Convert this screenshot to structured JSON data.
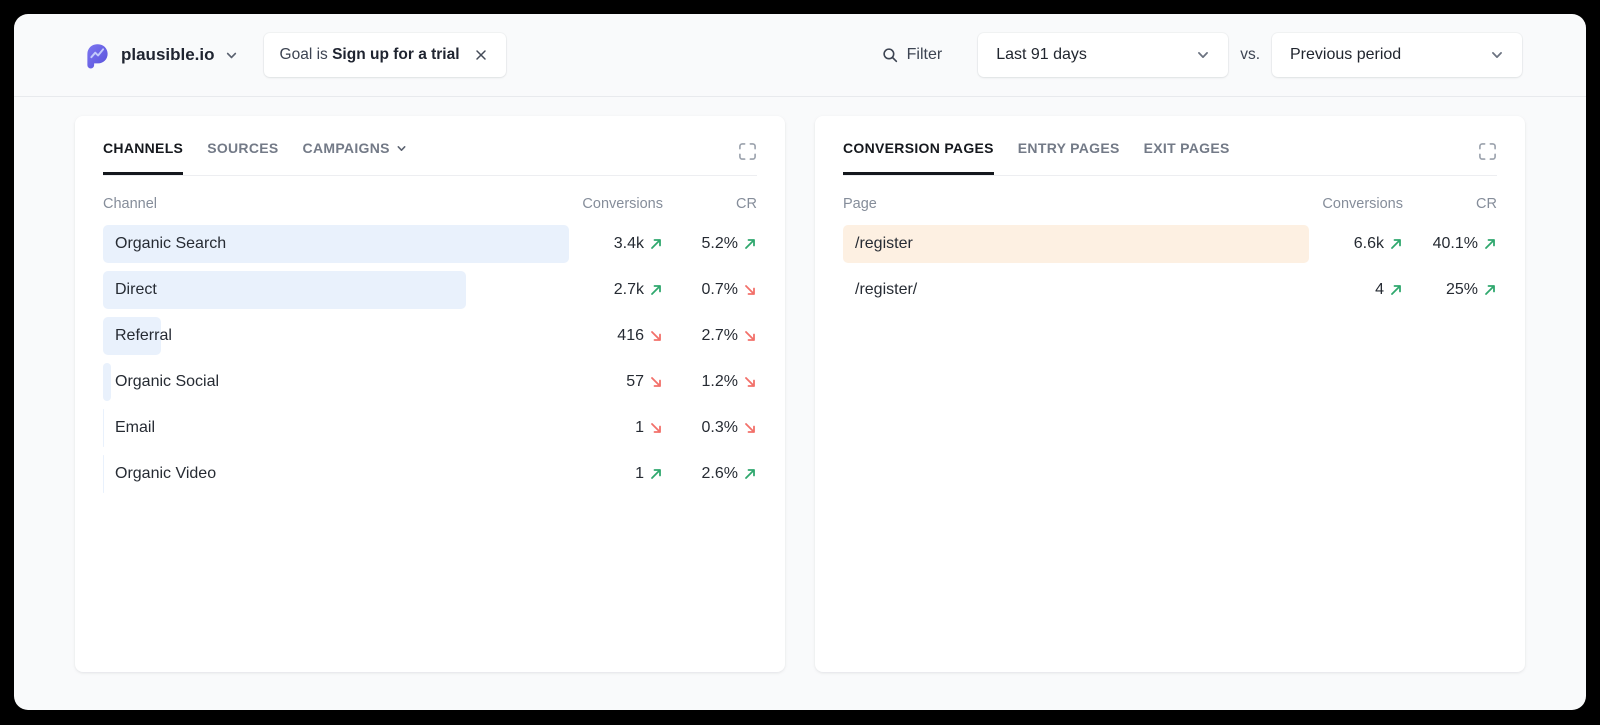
{
  "colors": {
    "positive": "#2fa86e",
    "negative": "#f2706a",
    "channels_bar": "#e9f1fc",
    "pages_bar": "#fdf0e2",
    "brand_purple": "#6f68e9"
  },
  "header": {
    "site_name": "plausible.io",
    "goal_filter": {
      "prefix": "Goal is",
      "value": "Sign up for a trial"
    },
    "filter_button": "Filter",
    "date_range": "Last 91 days",
    "comparison_label": "vs.",
    "comparison_value": "Previous period"
  },
  "panels": [
    {
      "name": "channels",
      "tabs": [
        {
          "label": "CHANNELS",
          "active": true
        },
        {
          "label": "SOURCES",
          "active": false
        },
        {
          "label": "CAMPAIGNS",
          "active": false,
          "dropdown": true
        }
      ],
      "columns": {
        "name": "Channel",
        "conversions": "Conversions",
        "cr": "CR"
      },
      "bar_color": "#e9f1fc",
      "rows": [
        {
          "name": "Organic Search",
          "conversions": "3.4k",
          "conversions_trend": "up",
          "cr": "5.2%",
          "cr_trend": "up",
          "bar_pct": 100
        },
        {
          "name": "Direct",
          "conversions": "2.7k",
          "conversions_trend": "up",
          "cr": "0.7%",
          "cr_trend": "down",
          "bar_pct": 78
        },
        {
          "name": "Referral",
          "conversions": "416",
          "conversions_trend": "down",
          "cr": "2.7%",
          "cr_trend": "down",
          "bar_pct": 12.5
        },
        {
          "name": "Organic Social",
          "conversions": "57",
          "conversions_trend": "down",
          "cr": "1.2%",
          "cr_trend": "down",
          "bar_pct": 1.7
        },
        {
          "name": "Email",
          "conversions": "1",
          "conversions_trend": "down",
          "cr": "0.3%",
          "cr_trend": "down",
          "bar_pct": 0.25
        },
        {
          "name": "Organic Video",
          "conversions": "1",
          "conversions_trend": "up",
          "cr": "2.6%",
          "cr_trend": "up",
          "bar_pct": 0.25
        }
      ]
    },
    {
      "name": "pages",
      "tabs": [
        {
          "label": "CONVERSION PAGES",
          "active": true
        },
        {
          "label": "ENTRY PAGES",
          "active": false
        },
        {
          "label": "EXIT PAGES",
          "active": false
        }
      ],
      "columns": {
        "name": "Page",
        "conversions": "Conversions",
        "cr": "CR"
      },
      "bar_color": "#fdf0e2",
      "rows": [
        {
          "name": "/register",
          "conversions": "6.6k",
          "conversions_trend": "up",
          "cr": "40.1%",
          "cr_trend": "up",
          "bar_pct": 100
        },
        {
          "name": "/register/",
          "conversions": "4",
          "conversions_trend": "up",
          "cr": "25%",
          "cr_trend": "up",
          "bar_pct": 0
        }
      ]
    }
  ]
}
